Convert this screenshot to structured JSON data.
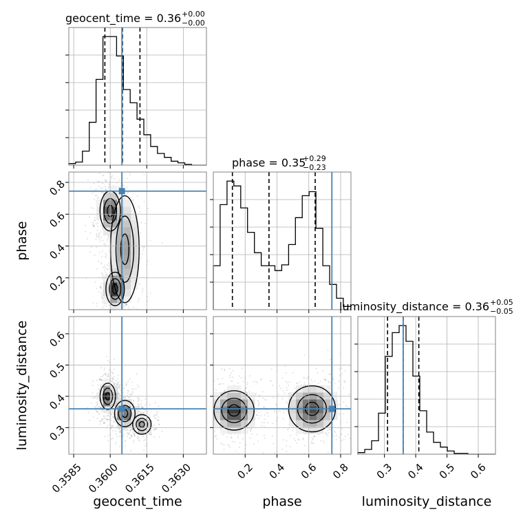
{
  "colors": {
    "truth": "#4682b4",
    "hist": "#000000",
    "grid": "#b0b0b0",
    "axes": "#808080",
    "scatter": "#000000"
  },
  "chart_data": {
    "type": "corner",
    "parameters": [
      "geocent_time",
      "phase",
      "luminosity_distance"
    ],
    "ranges": {
      "geocent_time": [
        0.3583,
        0.36395
      ],
      "phase": [
        0.0,
        0.865
      ],
      "luminosity_distance": [
        0.215,
        0.655
      ]
    },
    "truths": {
      "geocent_time": 0.36048,
      "phase": 0.745,
      "luminosity_distance": 0.36
    },
    "titles": [
      {
        "param": "geocent_time",
        "main": "geocent_time = 0.36",
        "plus": "+0.00",
        "minus": "−0.00",
        "median": 0.3605,
        "q16": 0.35978,
        "q84": 0.36122
      },
      {
        "param": "phase",
        "main": "phase = 0.35",
        "plus": "+0.29",
        "minus": "−0.23",
        "median": 0.35,
        "q16": 0.12,
        "q84": 0.64
      },
      {
        "param": "luminosity_distance",
        "main": "luminosity_distance = 0.36",
        "plus": "+0.05",
        "minus": "−0.05",
        "median": 0.36,
        "q16": 0.31,
        "q84": 0.41
      }
    ],
    "ticks": {
      "geocent_time": {
        "values": [
          0.3585,
          0.36,
          0.3615,
          0.363
        ],
        "labels": [
          "0.3585",
          "0.3600",
          "0.3615",
          "0.3630"
        ]
      },
      "phase": {
        "values": [
          0.2,
          0.4,
          0.6,
          0.8
        ],
        "labels": [
          "0.2",
          "0.4",
          "0.6",
          "0.8"
        ]
      },
      "luminosity_distance": {
        "values": [
          0.3,
          0.4,
          0.5,
          0.6
        ],
        "labels": [
          "0.3",
          "0.4",
          "0.5",
          "0.6"
        ]
      }
    },
    "histograms": {
      "geocent_time": {
        "edges": [
          0.3583,
          0.35858,
          0.35886,
          0.35914,
          0.35942,
          0.3597,
          0.35998,
          0.36026,
          0.36054,
          0.36082,
          0.3611,
          0.36138,
          0.36166,
          0.36194,
          0.36222,
          0.3625,
          0.36278,
          0.36306,
          0.36334,
          0.36362,
          0.36395
        ],
        "counts": [
          2,
          4,
          18,
          55,
          110,
          165,
          165,
          140,
          97,
          80,
          59,
          39,
          24,
          15,
          10,
          5,
          3,
          1,
          0,
          0
        ]
      },
      "phase": {
        "edges": [
          0.0,
          0.043,
          0.086,
          0.129,
          0.172,
          0.215,
          0.258,
          0.301,
          0.344,
          0.387,
          0.43,
          0.473,
          0.516,
          0.559,
          0.602,
          0.645,
          0.688,
          0.731,
          0.774,
          0.817,
          0.865
        ],
        "counts": [
          54,
          129,
          158,
          152,
          125,
          95,
          70,
          54,
          54,
          48,
          55,
          80,
          113,
          140,
          145,
          100,
          54,
          31,
          14,
          4
        ]
      },
      "luminosity_distance": {
        "edges": [
          0.215,
          0.237,
          0.259,
          0.281,
          0.303,
          0.325,
          0.347,
          0.369,
          0.391,
          0.413,
          0.435,
          0.457,
          0.479,
          0.501,
          0.523,
          0.545,
          0.567,
          0.589,
          0.611,
          0.633,
          0.655
        ],
        "counts": [
          2,
          6,
          17,
          52,
          124,
          154,
          163,
          143,
          99,
          55,
          28,
          15,
          9,
          4,
          1,
          1,
          0,
          0,
          0,
          0
        ]
      }
    },
    "density_blobs": {
      "phase_vs_geocent_time": [
        {
          "x": 0.3602,
          "y": 0.13,
          "sx": 0.00018,
          "sy": 0.05,
          "w": 1.0
        },
        {
          "x": 0.36,
          "y": 0.62,
          "sx": 0.0002,
          "sy": 0.06,
          "w": 0.9
        },
        {
          "x": 0.3606,
          "y": 0.38,
          "sx": 0.00028,
          "sy": 0.16,
          "w": 0.45
        }
      ],
      "luminosity_distance_vs_geocent_time": [
        {
          "x": 0.3599,
          "y": 0.4,
          "sx": 0.00015,
          "sy": 0.02,
          "w": 1.0
        },
        {
          "x": 0.3606,
          "y": 0.345,
          "sx": 0.0002,
          "sy": 0.02,
          "w": 0.8
        },
        {
          "x": 0.3613,
          "y": 0.31,
          "sx": 0.00018,
          "sy": 0.015,
          "w": 0.5
        }
      ],
      "luminosity_distance_vs_phase": [
        {
          "x": 0.13,
          "y": 0.355,
          "sx": 0.06,
          "sy": 0.03,
          "w": 1.0
        },
        {
          "x": 0.62,
          "y": 0.36,
          "sx": 0.07,
          "sy": 0.035,
          "w": 0.85
        }
      ]
    }
  }
}
